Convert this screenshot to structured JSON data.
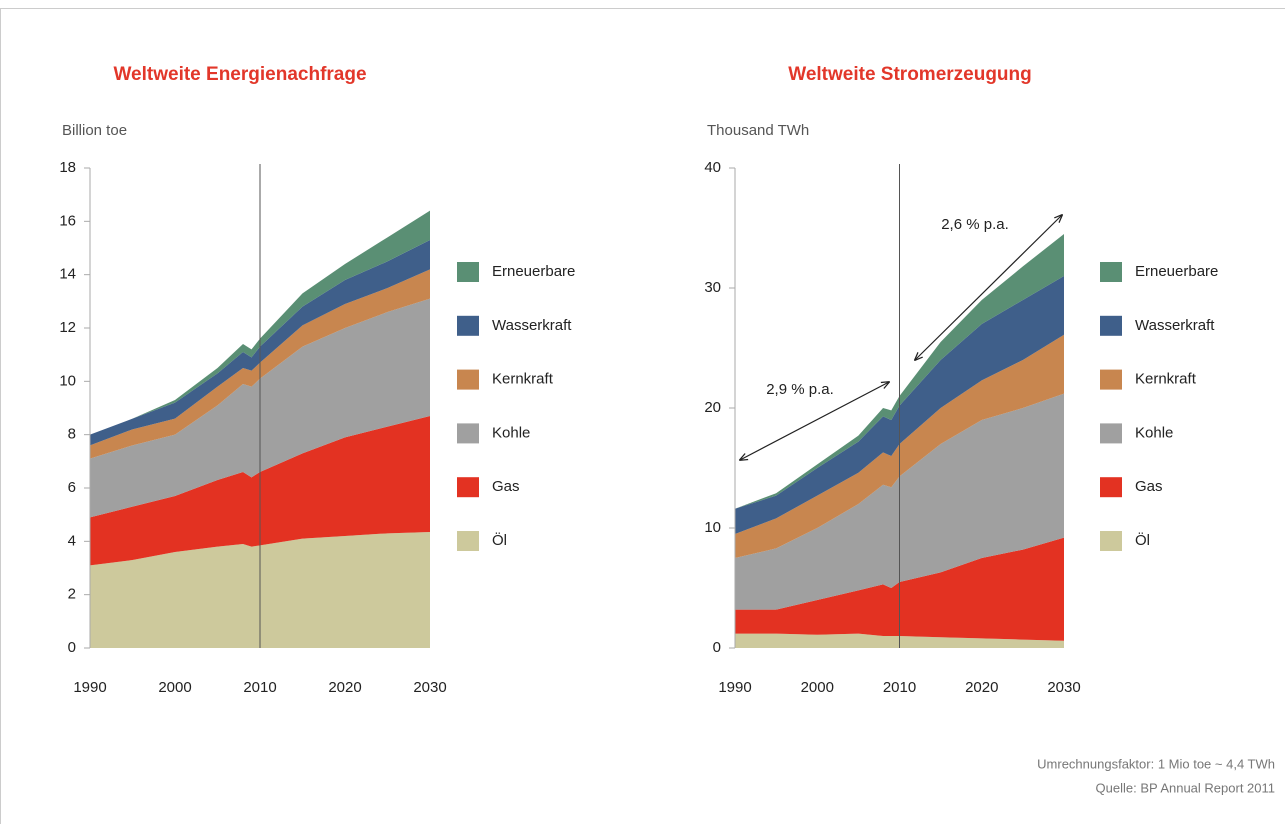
{
  "chart_data": [
    {
      "type": "area",
      "stacked": true,
      "title": "Weltweite Energienachfrage",
      "y_label": "Billion toe",
      "x": [
        1990,
        1995,
        2000,
        2005,
        2008,
        2009,
        2010,
        2015,
        2020,
        2025,
        2030
      ],
      "xlim": [
        1990,
        2030
      ],
      "xticks": [
        1990,
        2000,
        2010,
        2020,
        2030
      ],
      "ylim": [
        0,
        18
      ],
      "yticks": [
        0,
        2,
        4,
        6,
        8,
        10,
        12,
        14,
        16,
        18
      ],
      "vline": 2010,
      "legend": "right",
      "series": [
        {
          "name": "Öl",
          "color": "#cdc99c",
          "values": [
            3.1,
            3.3,
            3.6,
            3.8,
            3.9,
            3.8,
            3.85,
            4.1,
            4.2,
            4.3,
            4.35
          ]
        },
        {
          "name": "Gas",
          "color": "#e33222",
          "values": [
            1.8,
            2.0,
            2.1,
            2.5,
            2.7,
            2.6,
            2.75,
            3.2,
            3.7,
            4.0,
            4.35
          ]
        },
        {
          "name": "Kohle",
          "color": "#a0a0a0",
          "values": [
            2.2,
            2.3,
            2.3,
            2.8,
            3.3,
            3.4,
            3.5,
            4.0,
            4.1,
            4.3,
            4.4
          ]
        },
        {
          "name": "Kernkraft",
          "color": "#c8864f",
          "values": [
            0.5,
            0.6,
            0.6,
            0.7,
            0.6,
            0.6,
            0.6,
            0.8,
            0.9,
            0.9,
            1.1
          ]
        },
        {
          "name": "Wasserkraft",
          "color": "#3f5f8a",
          "values": [
            0.4,
            0.4,
            0.6,
            0.5,
            0.6,
            0.5,
            0.6,
            0.7,
            0.9,
            1.0,
            1.1
          ]
        },
        {
          "name": "Erneuerbare",
          "color": "#5a8f74",
          "values": [
            0,
            0,
            0.1,
            0.2,
            0.3,
            0.3,
            0.3,
            0.5,
            0.6,
            0.9,
            1.1
          ]
        }
      ]
    },
    {
      "type": "area",
      "stacked": true,
      "title": "Weltweite Stromerzeugung",
      "y_label": "Thousand TWh",
      "x": [
        1990,
        1995,
        2000,
        2005,
        2008,
        2009,
        2010,
        2015,
        2020,
        2025,
        2030
      ],
      "xlim": [
        1990,
        2030
      ],
      "xticks": [
        1990,
        2000,
        2010,
        2020,
        2030
      ],
      "ylim": [
        0,
        40
      ],
      "yticks": [
        0,
        10,
        20,
        30,
        40
      ],
      "vline": 2010,
      "legend": "right",
      "annotations": [
        "2,9 % p.a.",
        "2,6 % p.a."
      ],
      "series": [
        {
          "name": "Öl",
          "color": "#cdc99c",
          "values": [
            1.2,
            1.2,
            1.1,
            1.2,
            1.0,
            1.0,
            1.0,
            0.9,
            0.8,
            0.7,
            0.6
          ]
        },
        {
          "name": "Gas",
          "color": "#e33222",
          "values": [
            2.0,
            2.0,
            2.9,
            3.6,
            4.3,
            4.0,
            4.5,
            5.4,
            6.7,
            7.5,
            8.6
          ]
        },
        {
          "name": "Kohle",
          "color": "#a0a0a0",
          "values": [
            4.3,
            5.1,
            6.0,
            7.2,
            8.3,
            8.4,
            8.8,
            10.7,
            11.5,
            11.8,
            12.0
          ]
        },
        {
          "name": "Kernkraft",
          "color": "#c8864f",
          "values": [
            2.0,
            2.5,
            2.7,
            2.6,
            2.7,
            2.6,
            2.7,
            3.0,
            3.3,
            4.0,
            4.9
          ]
        },
        {
          "name": "Wasserkraft",
          "color": "#3f5f8a",
          "values": [
            2.1,
            1.9,
            2.3,
            2.6,
            3.0,
            3.0,
            3.2,
            4.0,
            4.7,
            5.0,
            4.9
          ]
        },
        {
          "name": "Erneuerbare",
          "color": "#5a8f74",
          "values": [
            0,
            0.2,
            0.3,
            0.5,
            0.7,
            0.8,
            0.8,
            1.5,
            2.0,
            2.8,
            3.5
          ]
        }
      ]
    }
  ],
  "footnotes": [
    "Umrechnungsfaktor: 1 Mio toe ~ 4,4 TWh",
    "Quelle: BP Annual Report 2011"
  ]
}
